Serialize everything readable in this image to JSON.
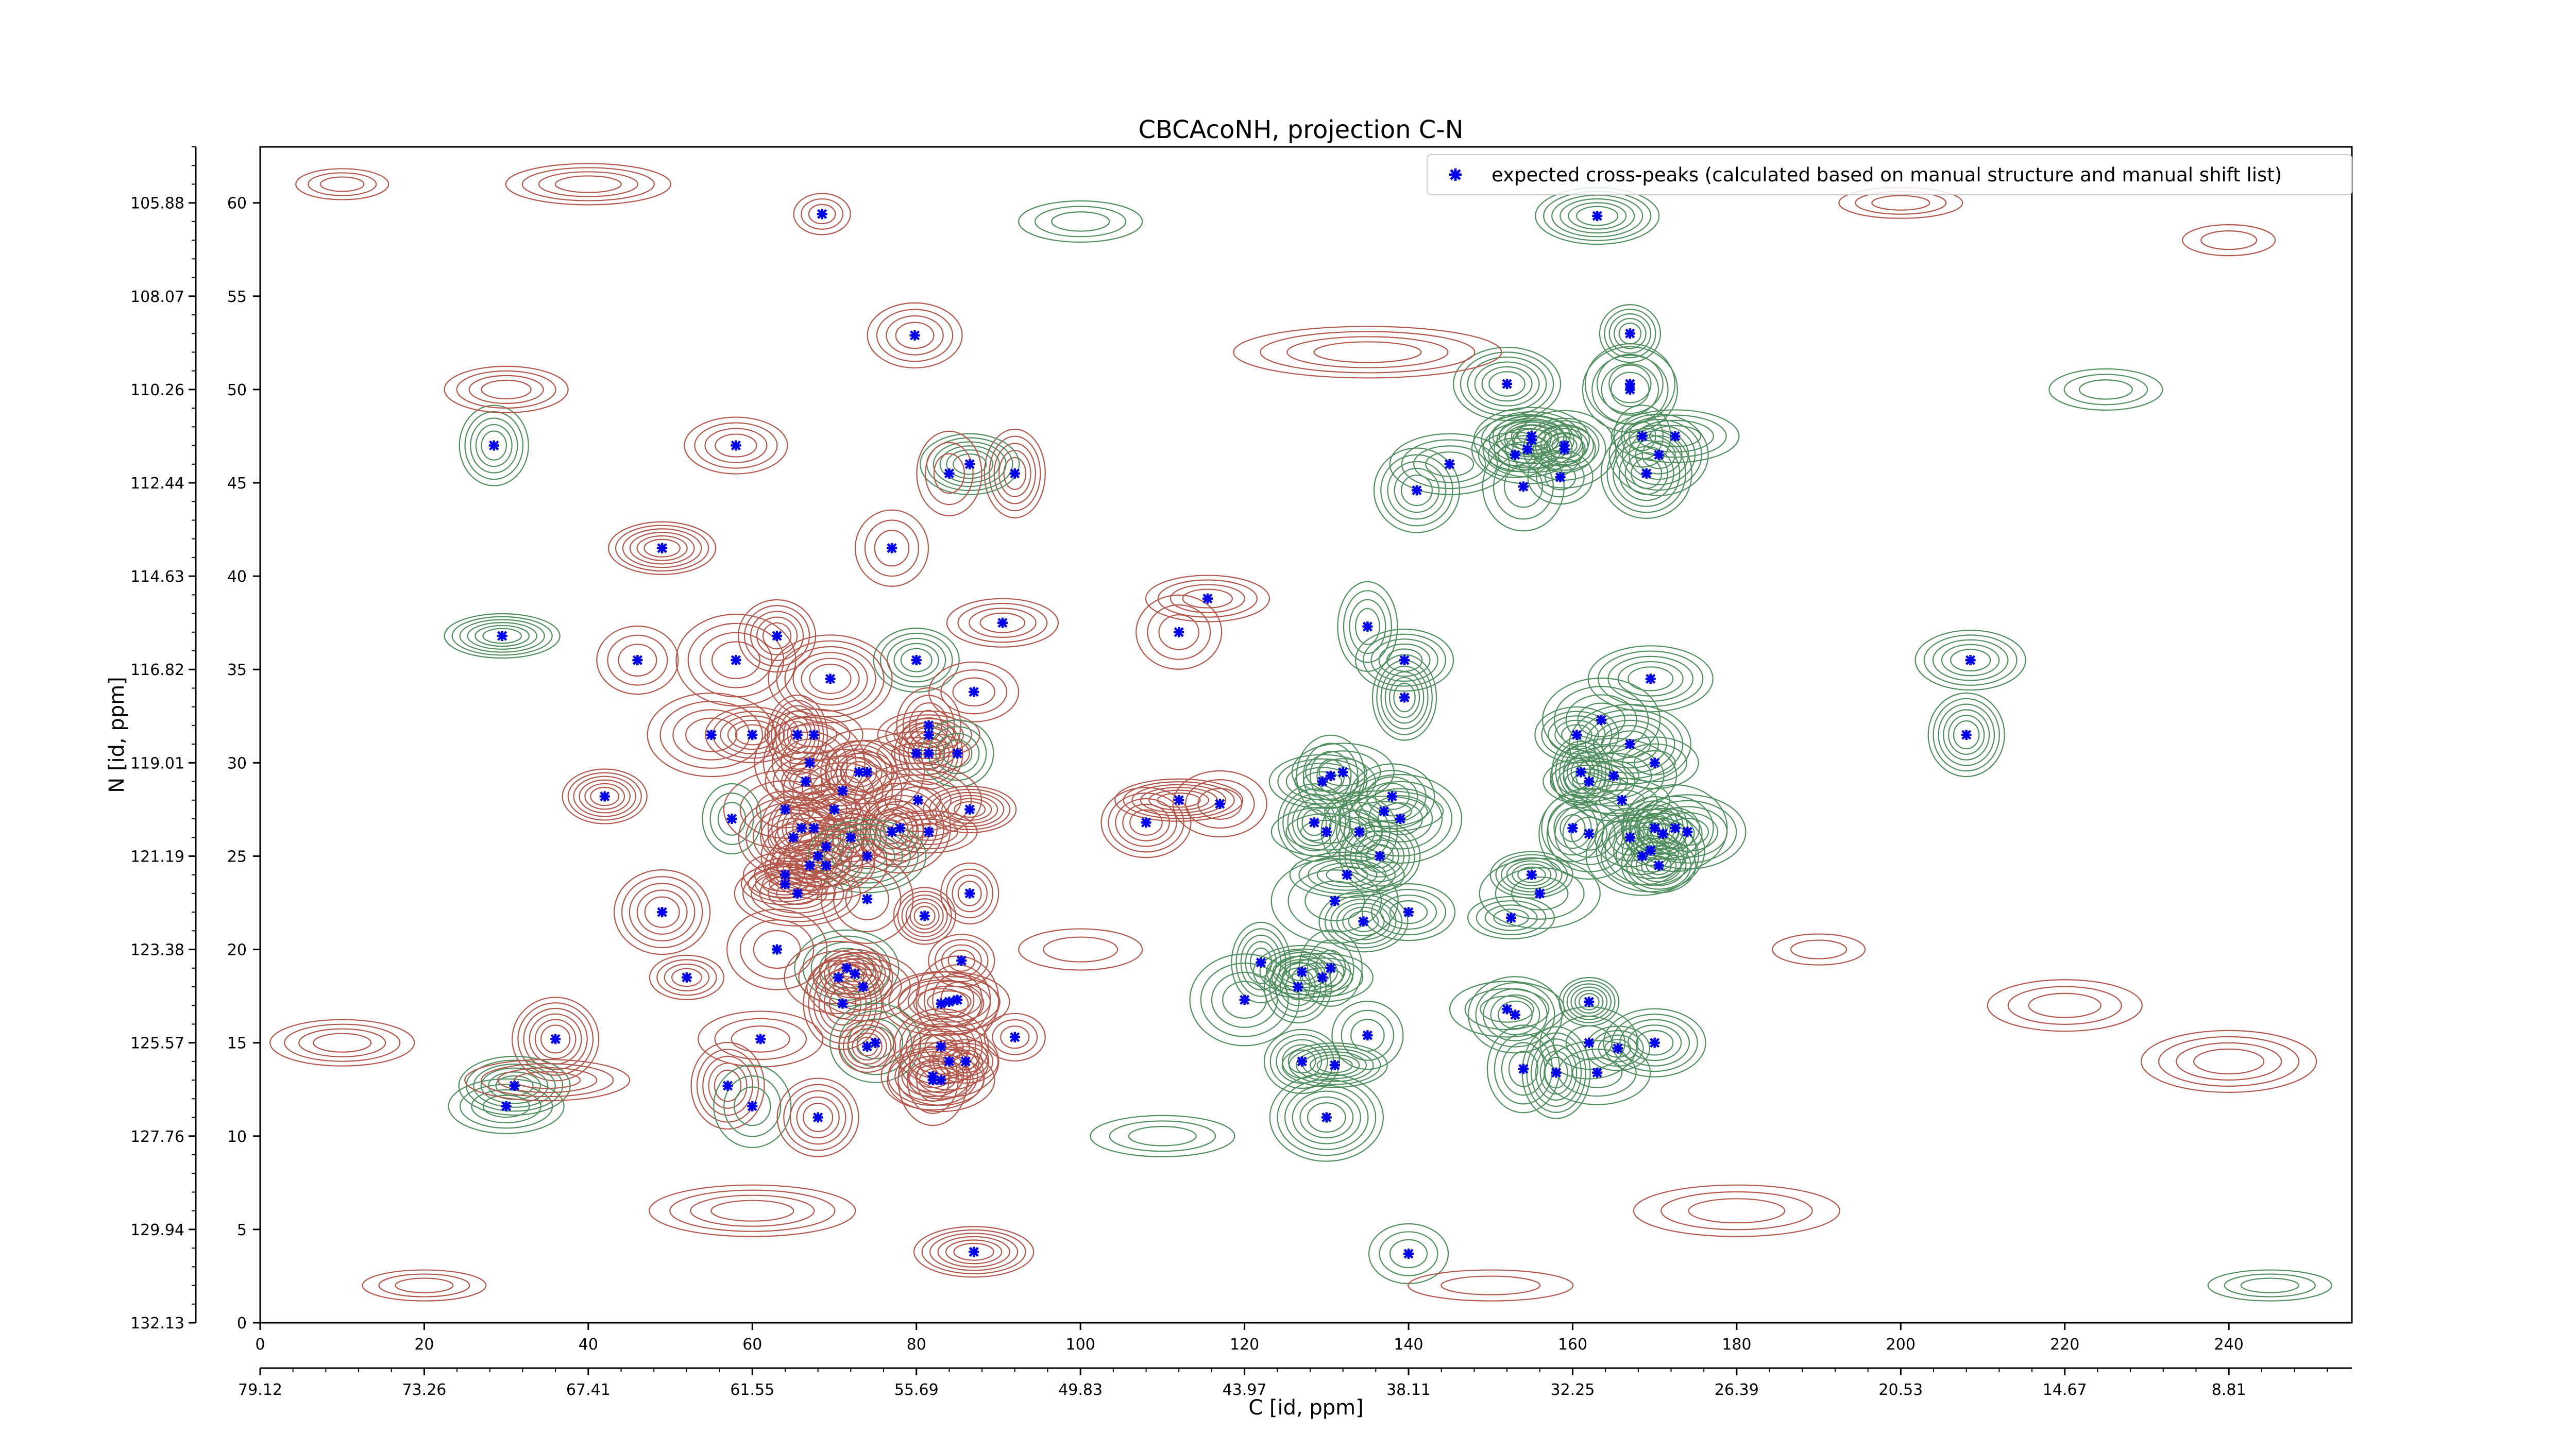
{
  "chart_data": {
    "type": "contour",
    "title": "CBCAcoNH, projection C-N",
    "xlabel": "C [id, ppm]",
    "ylabel": "N [id, ppm]",
    "xlim": [
      0,
      255
    ],
    "ylim": [
      0,
      63
    ],
    "x_ticks": [
      "0",
      "20",
      "40",
      "60",
      "80",
      "100",
      "120",
      "140",
      "160",
      "180",
      "200",
      "220",
      "240"
    ],
    "y_ticks": [
      "0",
      "5",
      "10",
      "15",
      "20",
      "25",
      "30",
      "35",
      "40",
      "45",
      "50",
      "55",
      "60"
    ],
    "x_ppm_ticks": [
      "79.12",
      "73.26",
      "67.41",
      "61.55",
      "55.69",
      "49.83",
      "43.97",
      "38.11",
      "32.25",
      "26.39",
      "20.53",
      "14.67",
      "8.81"
    ],
    "y_ppm_ticks": [
      "132.13",
      "129.94",
      "127.76",
      "125.57",
      "123.38",
      "121.19",
      "119.01",
      "116.82",
      "114.63",
      "112.44",
      "110.26",
      "108.07",
      "105.88"
    ],
    "legend": {
      "position": "top-right",
      "label": "expected cross-peaks (calculated based on manual structure and manual shift list)"
    },
    "colors": {
      "positive_contour": "#b5564a",
      "negative_contour": "#4f8f5e",
      "marker": "#0000ee"
    },
    "peaks": [
      [
        68.5,
        59.4
      ],
      [
        79.8,
        52.9
      ],
      [
        92,
        45.5
      ],
      [
        86.5,
        46
      ],
      [
        84,
        45.5
      ],
      [
        58,
        47
      ],
      [
        28.5,
        47
      ],
      [
        49,
        41.5
      ],
      [
        77,
        41.5
      ],
      [
        90.5,
        37.5
      ],
      [
        63,
        36.8
      ],
      [
        29.5,
        36.8
      ],
      [
        46,
        35.5
      ],
      [
        58,
        35.5
      ],
      [
        80,
        35.5
      ],
      [
        69.5,
        34.5
      ],
      [
        87,
        33.8
      ],
      [
        55,
        31.5
      ],
      [
        60,
        31.5
      ],
      [
        65.5,
        31.5
      ],
      [
        67.5,
        31.5
      ],
      [
        81.5,
        32
      ],
      [
        81.5,
        31.5
      ],
      [
        81.5,
        30.5
      ],
      [
        80,
        30.5
      ],
      [
        85,
        30.5
      ],
      [
        67,
        30
      ],
      [
        73,
        29.5
      ],
      [
        74,
        29.5
      ],
      [
        66.5,
        29
      ],
      [
        71,
        28.5
      ],
      [
        42,
        28.2
      ],
      [
        64,
        27.5
      ],
      [
        70,
        27.5
      ],
      [
        80.2,
        28
      ],
      [
        86.5,
        27.5
      ],
      [
        57.5,
        27
      ],
      [
        81.5,
        26.3
      ],
      [
        77,
        26.3
      ],
      [
        78,
        26.5
      ],
      [
        66,
        26.5
      ],
      [
        67.5,
        26.5
      ],
      [
        72,
        26
      ],
      [
        65,
        26
      ],
      [
        69,
        25.5
      ],
      [
        68,
        25
      ],
      [
        67,
        24.5
      ],
      [
        74,
        25
      ],
      [
        64,
        24
      ],
      [
        69,
        24.5
      ],
      [
        64,
        23.5
      ],
      [
        65.5,
        23
      ],
      [
        74,
        22.7
      ],
      [
        86.5,
        23
      ],
      [
        49,
        22
      ],
      [
        81,
        21.8
      ],
      [
        63,
        20
      ],
      [
        85.5,
        19.4
      ],
      [
        71.5,
        19
      ],
      [
        72.5,
        18.7
      ],
      [
        70.5,
        18.5
      ],
      [
        52,
        18.5
      ],
      [
        73.5,
        18
      ],
      [
        71,
        17.1
      ],
      [
        83,
        17.1
      ],
      [
        85,
        17.3
      ],
      [
        84,
        17.2
      ],
      [
        36,
        15.2
      ],
      [
        61,
        15.2
      ],
      [
        75,
        15
      ],
      [
        74,
        14.8
      ],
      [
        83,
        14.8
      ],
      [
        92,
        15.3
      ],
      [
        84,
        14
      ],
      [
        86,
        14
      ],
      [
        82,
        13.2
      ],
      [
        82,
        13
      ],
      [
        83,
        13
      ],
      [
        57,
        12.7
      ],
      [
        31,
        12.7
      ],
      [
        60,
        11.6
      ],
      [
        30,
        11.6
      ],
      [
        68,
        11
      ],
      [
        87,
        3.8
      ],
      [
        112,
        37
      ],
      [
        115.5,
        38.8
      ],
      [
        108,
        26.8
      ],
      [
        112,
        28
      ],
      [
        117,
        27.8
      ],
      [
        135,
        37.3
      ],
      [
        139.5,
        35.5
      ],
      [
        139.5,
        33.5
      ],
      [
        132,
        29.5
      ],
      [
        130.5,
        29.3
      ],
      [
        129.5,
        29
      ],
      [
        128.5,
        26.8
      ],
      [
        130,
        26.3
      ],
      [
        134,
        26.3
      ],
      [
        132.5,
        24
      ],
      [
        136.5,
        25
      ],
      [
        137,
        27.4
      ],
      [
        138,
        28.2
      ],
      [
        139,
        27
      ],
      [
        134.5,
        21.5
      ],
      [
        131,
        22.6
      ],
      [
        140,
        22
      ],
      [
        122,
        19.3
      ],
      [
        127,
        18.8
      ],
      [
        130.5,
        19
      ],
      [
        129.5,
        18.5
      ],
      [
        126.5,
        18
      ],
      [
        131,
        13.8
      ],
      [
        135,
        15.4
      ],
      [
        120,
        17.3
      ],
      [
        127,
        14
      ],
      [
        130,
        11
      ],
      [
        140,
        3.7
      ],
      [
        163.5,
        32.3
      ],
      [
        160.5,
        31.5
      ],
      [
        167,
        31
      ],
      [
        170,
        30
      ],
      [
        165,
        29.3
      ],
      [
        162,
        29
      ],
      [
        161,
        29.5
      ],
      [
        166,
        28
      ],
      [
        160,
        26.5
      ],
      [
        162,
        26.2
      ],
      [
        170,
        26.5
      ],
      [
        172.5,
        26.5
      ],
      [
        167,
        26
      ],
      [
        169.5,
        25.3
      ],
      [
        170.5,
        24.5
      ],
      [
        168.5,
        25
      ],
      [
        171,
        26.2
      ],
      [
        174,
        26.3
      ],
      [
        155,
        24
      ],
      [
        156,
        23
      ],
      [
        152.5,
        21.7
      ],
      [
        169.5,
        34.5
      ],
      [
        169,
        45.5
      ],
      [
        168.5,
        47.5
      ],
      [
        167,
        50
      ],
      [
        167,
        53
      ],
      [
        170.5,
        46.5
      ],
      [
        158.5,
        45.3
      ],
      [
        159,
        46.8
      ],
      [
        159,
        47
      ],
      [
        152,
        50.3
      ],
      [
        153,
        46.5
      ],
      [
        154.5,
        46.8
      ],
      [
        155,
        47.5
      ],
      [
        155,
        47.3
      ],
      [
        154,
        44.8
      ],
      [
        145,
        46
      ],
      [
        141,
        44.6
      ],
      [
        163,
        59.3
      ],
      [
        167,
        50.3
      ],
      [
        172.5,
        47.5
      ],
      [
        153,
        16.5
      ],
      [
        162,
        17.2
      ],
      [
        162,
        15
      ],
      [
        165.5,
        14.7
      ],
      [
        170,
        15
      ],
      [
        158,
        13.4
      ],
      [
        163,
        13.4
      ],
      [
        154,
        13.6
      ],
      [
        208.5,
        35.5
      ],
      [
        208,
        31.5
      ],
      [
        152,
        16.8
      ]
    ]
  }
}
